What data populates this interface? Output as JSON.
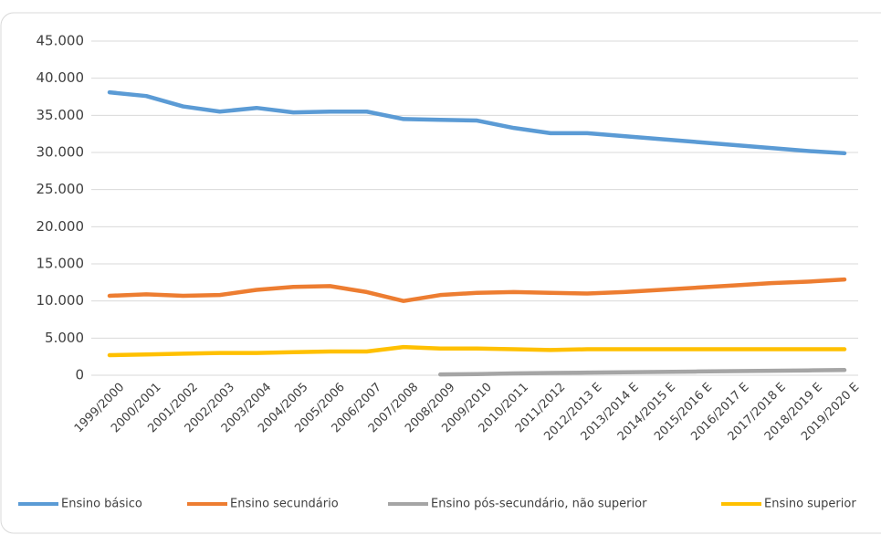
{
  "chart_data": {
    "type": "line",
    "categories": [
      "1999/2000",
      "2000/2001",
      "2001/2002",
      "2002/2003",
      "2003/2004",
      "2004/2005",
      "2005/2006",
      "2006/2007",
      "2007/2008",
      "2008/2009",
      "2009/2010",
      "2010/2011",
      "2011/2012",
      "2012/2013 E",
      "2013/2014 E",
      "2014/2015 E",
      "2015/2016 E",
      "2016/2017 E",
      "2017/2018 E",
      "2018/2019 E",
      "2019/2020 E"
    ],
    "series": [
      {
        "name": "Ensino básico",
        "color": "#5b9bd5",
        "values": [
          38100,
          37600,
          36200,
          35500,
          36000,
          35400,
          35500,
          35500,
          34500,
          34400,
          34300,
          33300,
          32600,
          32600,
          32200,
          31800,
          31400,
          31000,
          30600,
          30200,
          29900
        ]
      },
      {
        "name": "Ensino secundário",
        "color": "#ed7d31",
        "values": [
          10700,
          10900,
          10700,
          10800,
          11500,
          11900,
          12000,
          11200,
          10000,
          10800,
          11100,
          11200,
          11100,
          11000,
          11200,
          11500,
          11800,
          12100,
          12400,
          12600,
          12900
        ]
      },
      {
        "name": "Ensino pós-secundário, não superior",
        "color": "#a5a5a5",
        "values": [
          null,
          null,
          null,
          null,
          null,
          null,
          null,
          null,
          null,
          100,
          150,
          250,
          300,
          350,
          400,
          450,
          500,
          550,
          600,
          650,
          700
        ]
      },
      {
        "name": "Ensino superior",
        "color": "#ffc000",
        "values": [
          2700,
          2800,
          2900,
          3000,
          3000,
          3100,
          3200,
          3200,
          3800,
          3600,
          3600,
          3500,
          3400,
          3500,
          3500,
          3500,
          3500,
          3500,
          3500,
          3500,
          3500
        ]
      }
    ],
    "ylim": [
      0,
      45000
    ],
    "yticks": [
      0,
      {
        "value": 5000,
        "label": "5.000"
      },
      {
        "value": 10000,
        "label": "10.000"
      },
      {
        "value": 15000,
        "label": "15.000"
      },
      {
        "value": 20000,
        "label": "20.000"
      },
      {
        "value": 25000,
        "label": "25.000"
      },
      {
        "value": 30000,
        "label": "30.000"
      },
      {
        "value": 35000,
        "label": "35.000"
      },
      {
        "value": 40000,
        "label": "40.000"
      },
      {
        "value": 45000,
        "label": "45.000"
      }
    ],
    "grid": true,
    "legend": "bottom"
  }
}
